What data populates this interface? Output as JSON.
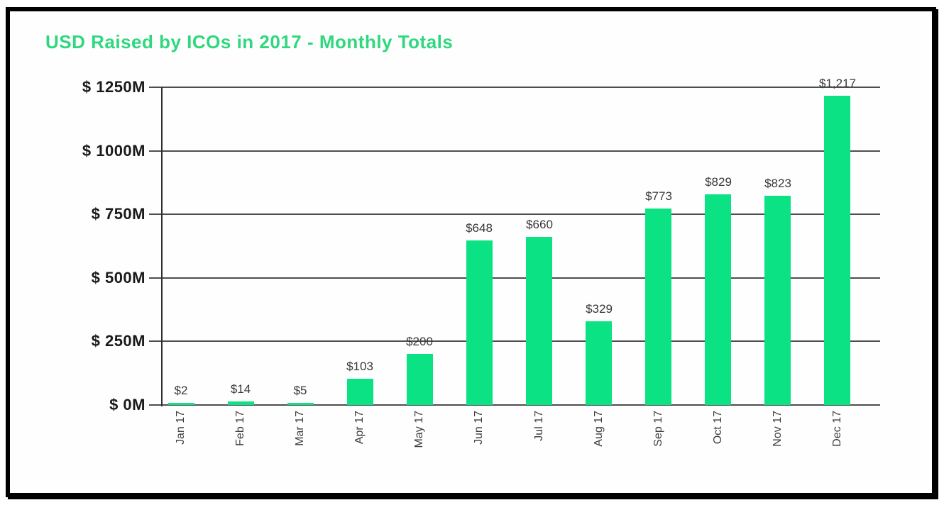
{
  "chart_data": {
    "type": "bar",
    "title": "USD Raised by ICOs in 2017 - Monthly Totals",
    "title_color": "#2FD87E",
    "xlabel": "",
    "ylabel": "",
    "categories": [
      "Jan 17",
      "Feb 17",
      "Mar 17",
      "Apr 17",
      "May 17",
      "Jun 17",
      "Jul 17",
      "Aug 17",
      "Sep 17",
      "Oct 17",
      "Nov 17",
      "Dec 17"
    ],
    "values": [
      2,
      14,
      5,
      103,
      200,
      648,
      660,
      329,
      773,
      829,
      823,
      1217
    ],
    "bar_value_labels": [
      "$2",
      "$14",
      "$5",
      "$103",
      "$200",
      "$648",
      "$660",
      "$329",
      "$773",
      "$829",
      "$823",
      "$1,217"
    ],
    "ytick_labels": [
      "$ 0M",
      "$ 250M",
      "$ 500M",
      "$ 750M",
      "$ 1000M",
      "$ 1250M"
    ],
    "ytick_values": [
      0,
      250,
      500,
      750,
      1000,
      1250
    ],
    "ylim": [
      0,
      1250
    ],
    "grid": true,
    "legend": false,
    "bar_color": "#0BE283",
    "grid_color": "#4E4E4E",
    "axis_color": "#2E2E2E",
    "ytick_label_color": "#1A1A1A",
    "value_label_color": "#383838",
    "xtick_label_color": "#3D3D3D",
    "frame_border_color": "#000000",
    "background_color": "#FEFEFE"
  }
}
